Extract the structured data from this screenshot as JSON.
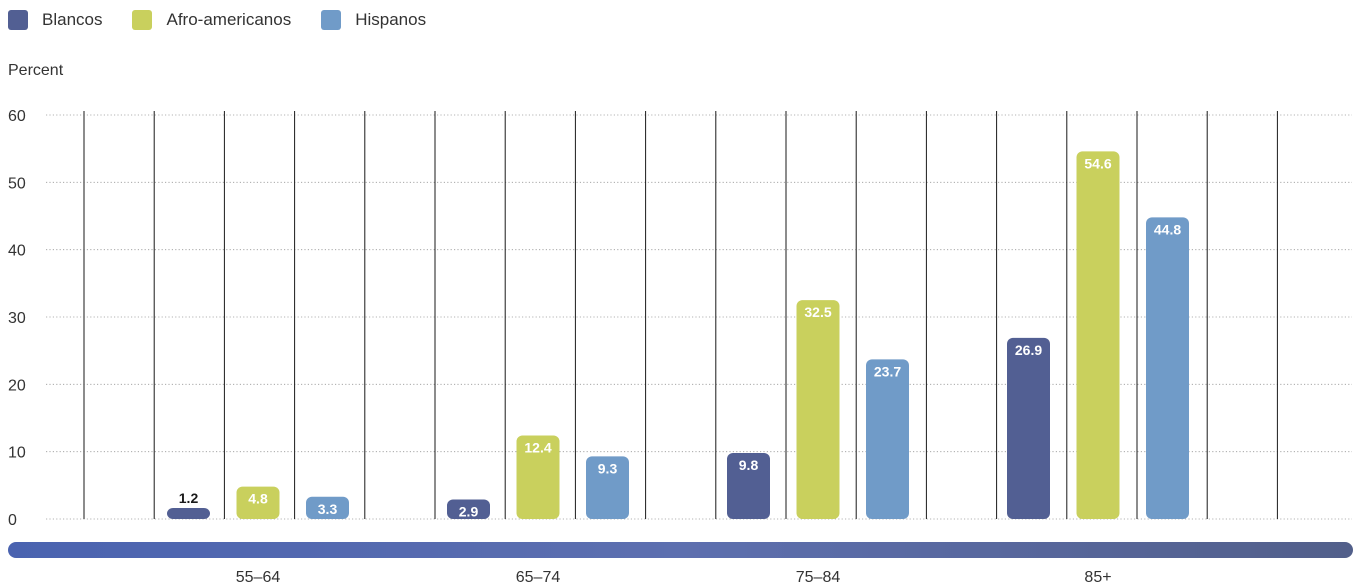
{
  "chart_data": {
    "type": "bar",
    "ylabel": "Percent",
    "ylim": [
      0,
      60
    ],
    "yticks": [
      0,
      10,
      20,
      30,
      40,
      50,
      60
    ],
    "categories": [
      "55–64",
      "65–74",
      "75–84",
      "85+"
    ],
    "series": [
      {
        "name": "Blancos",
        "color": "#525f93",
        "values": [
          1.2,
          2.9,
          9.8,
          26.9
        ]
      },
      {
        "name": "Afro-americanos",
        "color": "#c9d05d",
        "values": [
          4.8,
          12.4,
          32.5,
          54.6
        ]
      },
      {
        "name": "Hispanos",
        "color": "#709bc8",
        "values": [
          3.3,
          9.3,
          23.7,
          44.8
        ]
      }
    ],
    "grid": true,
    "legend": "top-left",
    "axis_bar_gradient": [
      "#4a63b0",
      "#5d6faf",
      "#525f8a"
    ]
  }
}
